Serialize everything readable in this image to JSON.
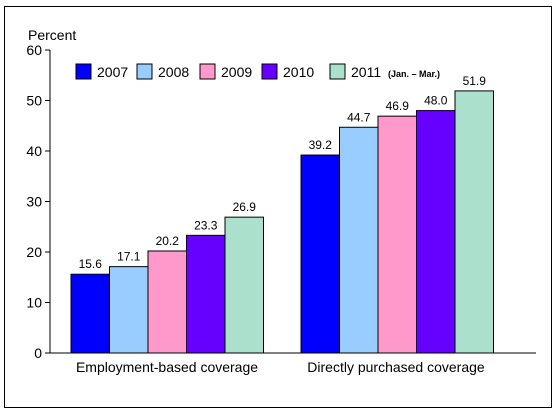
{
  "chart_data": {
    "type": "bar",
    "ylabel": "Percent",
    "ylim": [
      0,
      60
    ],
    "yticks": [
      0,
      10,
      20,
      30,
      40,
      50,
      60
    ],
    "grid": false,
    "legend_position": "top",
    "categories": [
      "Employment-based coverage",
      "Directly purchased coverage"
    ],
    "series": [
      {
        "name": "2007",
        "values": [
          15.6,
          39.2
        ],
        "labels": [
          "15.6",
          "39.2"
        ],
        "color": "#0000ff"
      },
      {
        "name": "2008",
        "values": [
          17.1,
          44.7
        ],
        "labels": [
          "17.1",
          "44.7"
        ],
        "color": "#99ccff"
      },
      {
        "name": "2009",
        "values": [
          20.2,
          46.9
        ],
        "labels": [
          "20.2",
          "46.9"
        ],
        "color": "#ff99cc"
      },
      {
        "name": "2010",
        "values": [
          23.3,
          48.0
        ],
        "labels": [
          "23.3",
          "48.0"
        ],
        "color": "#6600ff"
      },
      {
        "name": "2011",
        "note": "(Jan. – Mar.)",
        "values": [
          26.9,
          51.9
        ],
        "labels": [
          "26.9",
          "51.9"
        ],
        "color": "#aae0cc"
      }
    ]
  }
}
